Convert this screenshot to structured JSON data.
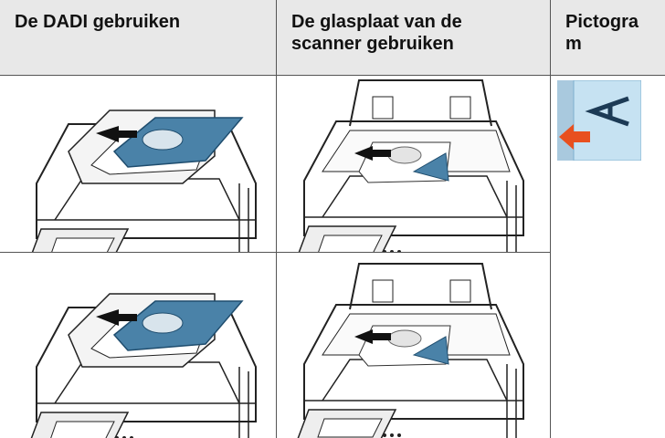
{
  "table": {
    "headers": [
      "De DADI gebruiken",
      "De glasplaat van de scanner gebruiken",
      "Pictogram"
    ]
  }
}
